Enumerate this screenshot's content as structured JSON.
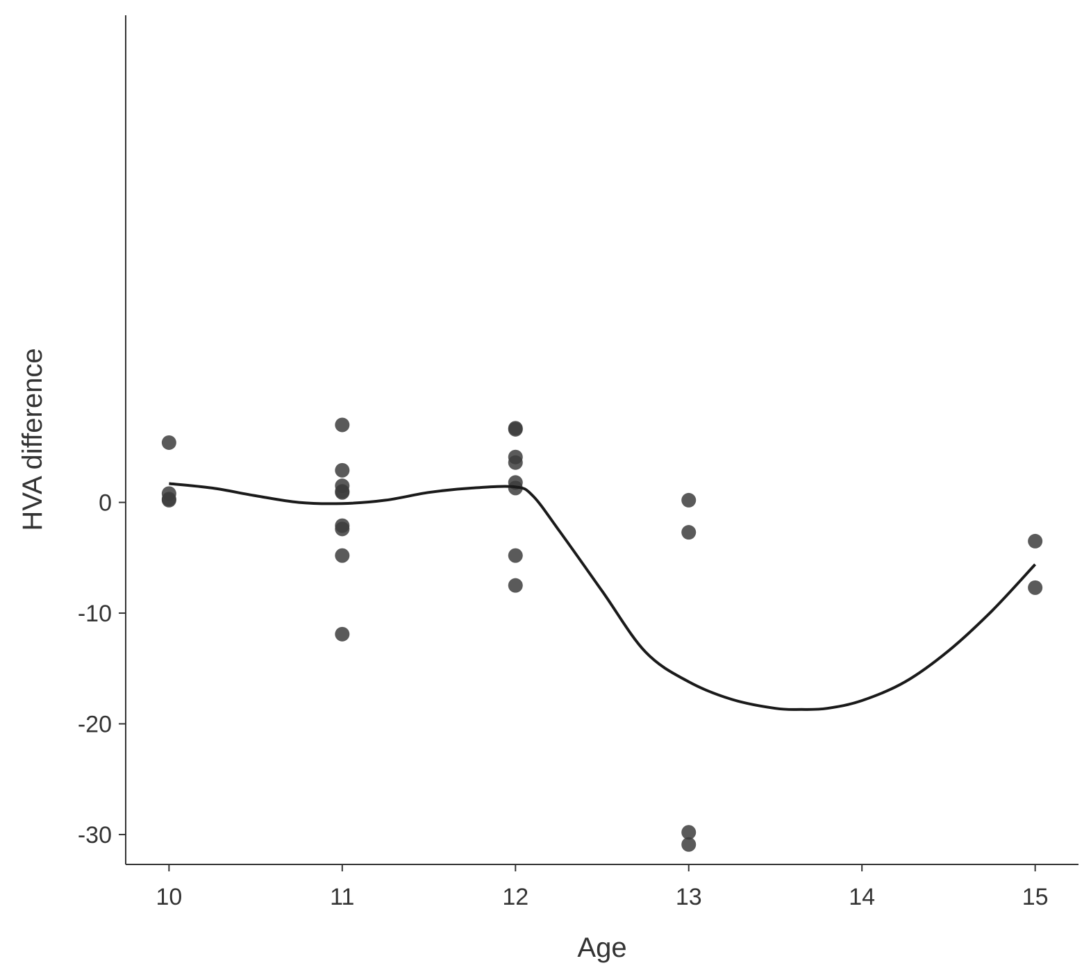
{
  "chart_data": {
    "type": "scatter",
    "xlabel": "Age",
    "ylabel": "HVA difference",
    "xlim": [
      9.75,
      15.25
    ],
    "ylim": [
      -32.7,
      44
    ],
    "x_ticks": [
      10,
      11,
      12,
      13,
      14,
      15
    ],
    "y_ticks": [
      0,
      -10,
      -20,
      -30
    ],
    "grid": false,
    "legend": "none",
    "point_color": "#3d3d3d",
    "line_color": "#1a1a1a",
    "points": [
      {
        "x": 10,
        "y": 5.4
      },
      {
        "x": 10,
        "y": 0.8
      },
      {
        "x": 10,
        "y": 0.3
      },
      {
        "x": 10,
        "y": 0.2
      },
      {
        "x": 11,
        "y": 7.0
      },
      {
        "x": 11,
        "y": 2.9
      },
      {
        "x": 11,
        "y": 1.5
      },
      {
        "x": 11,
        "y": 1.0
      },
      {
        "x": 11,
        "y": 0.9
      },
      {
        "x": 11,
        "y": -2.1
      },
      {
        "x": 11,
        "y": -2.4
      },
      {
        "x": 11,
        "y": -4.8
      },
      {
        "x": 11,
        "y": -11.9
      },
      {
        "x": 12,
        "y": 6.7
      },
      {
        "x": 12,
        "y": 6.6
      },
      {
        "x": 12,
        "y": 4.1
      },
      {
        "x": 12,
        "y": 3.6
      },
      {
        "x": 12,
        "y": 1.8
      },
      {
        "x": 12,
        "y": 1.3
      },
      {
        "x": 12,
        "y": -4.8
      },
      {
        "x": 12,
        "y": -7.5
      },
      {
        "x": 13,
        "y": 0.2
      },
      {
        "x": 13,
        "y": -2.7
      },
      {
        "x": 13,
        "y": -29.8
      },
      {
        "x": 13,
        "y": -30.9
      },
      {
        "x": 15,
        "y": -3.5
      },
      {
        "x": 15,
        "y": -7.7
      }
    ],
    "smooth_line": {
      "x": [
        10.0,
        10.25,
        10.5,
        10.75,
        11.0,
        11.25,
        11.5,
        11.75,
        12.0,
        12.1,
        12.25,
        12.5,
        12.75,
        13.0,
        13.25,
        13.5,
        13.65,
        13.8,
        14.0,
        14.25,
        14.5,
        14.75,
        15.0
      ],
      "y": [
        1.7,
        1.3,
        0.6,
        0.0,
        -0.1,
        0.2,
        0.9,
        1.3,
        1.4,
        0.6,
        -2.5,
        -8.0,
        -13.5,
        -16.2,
        -17.8,
        -18.6,
        -18.7,
        -18.6,
        -17.9,
        -16.2,
        -13.4,
        -9.8,
        -5.6
      ]
    }
  }
}
